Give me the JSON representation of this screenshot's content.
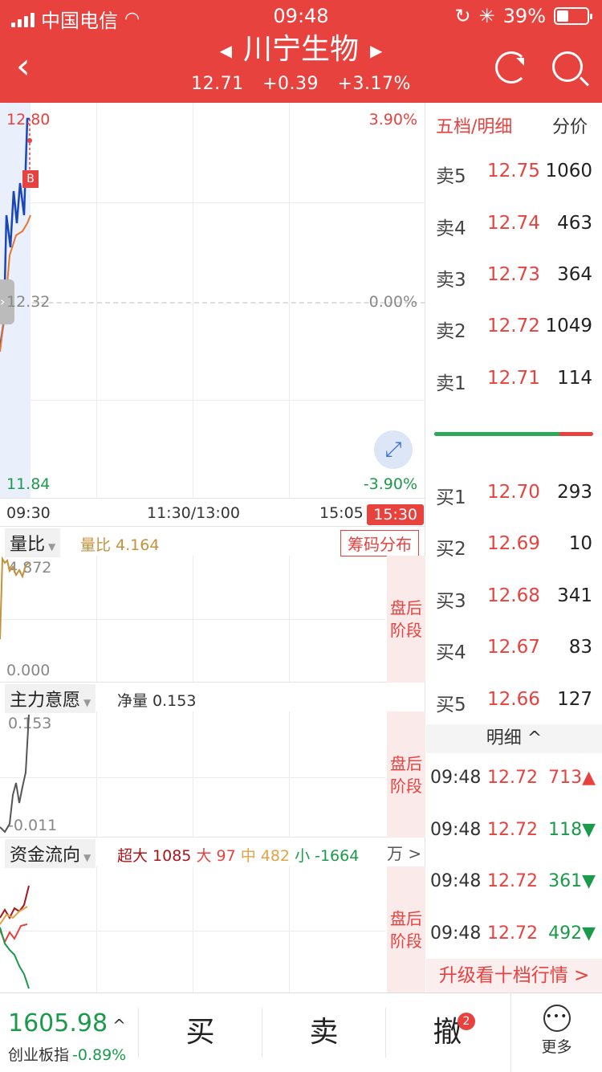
{
  "status": {
    "carrier": "中国电信",
    "time": "09:48",
    "battery": "39%"
  },
  "header": {
    "stock_name": "川宁生物",
    "price": "12.71",
    "change": "+0.39",
    "change_pct": "+3.17%"
  },
  "price_chart": {
    "high_price": "12.80",
    "high_pct": "3.90%",
    "mid_price": "12.32",
    "mid_pct": "0.00%",
    "low_price": "11.84",
    "low_pct": "-3.90%",
    "buy_marker": "B",
    "times": {
      "open": "09:30",
      "mid": "11:30/13:00",
      "close_pre": "15:05 -",
      "close": "15:30"
    }
  },
  "volume_ratio": {
    "name": "量比",
    "value_label": "量比 4.164",
    "top": "4.872",
    "bottom": "0.000",
    "chips_button": "筹码分布",
    "after_hours": "盘后\n阶段"
  },
  "main_force": {
    "name": "主力意愿",
    "value_label": "净量 0.153",
    "top": "0.153",
    "bottom": "-0.011",
    "after_hours": "盘后\n阶段"
  },
  "fund_flow": {
    "name": "资金流向",
    "xl_label": "超大 1085",
    "l_label": "大 97",
    "m_label": "中 482",
    "s_label": "小 -1664",
    "unit_button": "万 >",
    "after_hours": "盘后\n阶段"
  },
  "order_book": {
    "tab_order": "五档/明细",
    "tab_price": "分价",
    "asks": [
      {
        "label": "卖5",
        "price": "12.75",
        "vol": "1060"
      },
      {
        "label": "卖4",
        "price": "12.74",
        "vol": "463"
      },
      {
        "label": "卖3",
        "price": "12.73",
        "vol": "364"
      },
      {
        "label": "卖2",
        "price": "12.72",
        "vol": "1049"
      },
      {
        "label": "卖1",
        "price": "12.71",
        "vol": "114"
      }
    ],
    "bids": [
      {
        "label": "买1",
        "price": "12.70",
        "vol": "293"
      },
      {
        "label": "买2",
        "price": "12.69",
        "vol": "10"
      },
      {
        "label": "买3",
        "price": "12.68",
        "vol": "341"
      },
      {
        "label": "买4",
        "price": "12.67",
        "vol": "83"
      },
      {
        "label": "买5",
        "price": "12.66",
        "vol": "127"
      }
    ],
    "buy_ratio": 0.79,
    "detail_header": "明细 ^",
    "ticks": [
      {
        "time": "09:48",
        "price": "12.72",
        "vol": "713▲",
        "dir": "up"
      },
      {
        "time": "09:48",
        "price": "12.72",
        "vol": "118▼",
        "dir": "down"
      },
      {
        "time": "09:48",
        "price": "12.72",
        "vol": "361▼",
        "dir": "down"
      },
      {
        "time": "09:48",
        "price": "12.72",
        "vol": "492▼",
        "dir": "down"
      }
    ],
    "upgrade_label": "升级看十档行情 >"
  },
  "bottom": {
    "index_value": "1605.98",
    "index_arrow": "^",
    "index_name": "创业板指",
    "index_change": "-0.89%",
    "buy_label": "买",
    "sell_label": "卖",
    "cancel_label": "撤",
    "cancel_badge": "2",
    "more_label": "更多",
    "more_icon": "•••"
  }
}
